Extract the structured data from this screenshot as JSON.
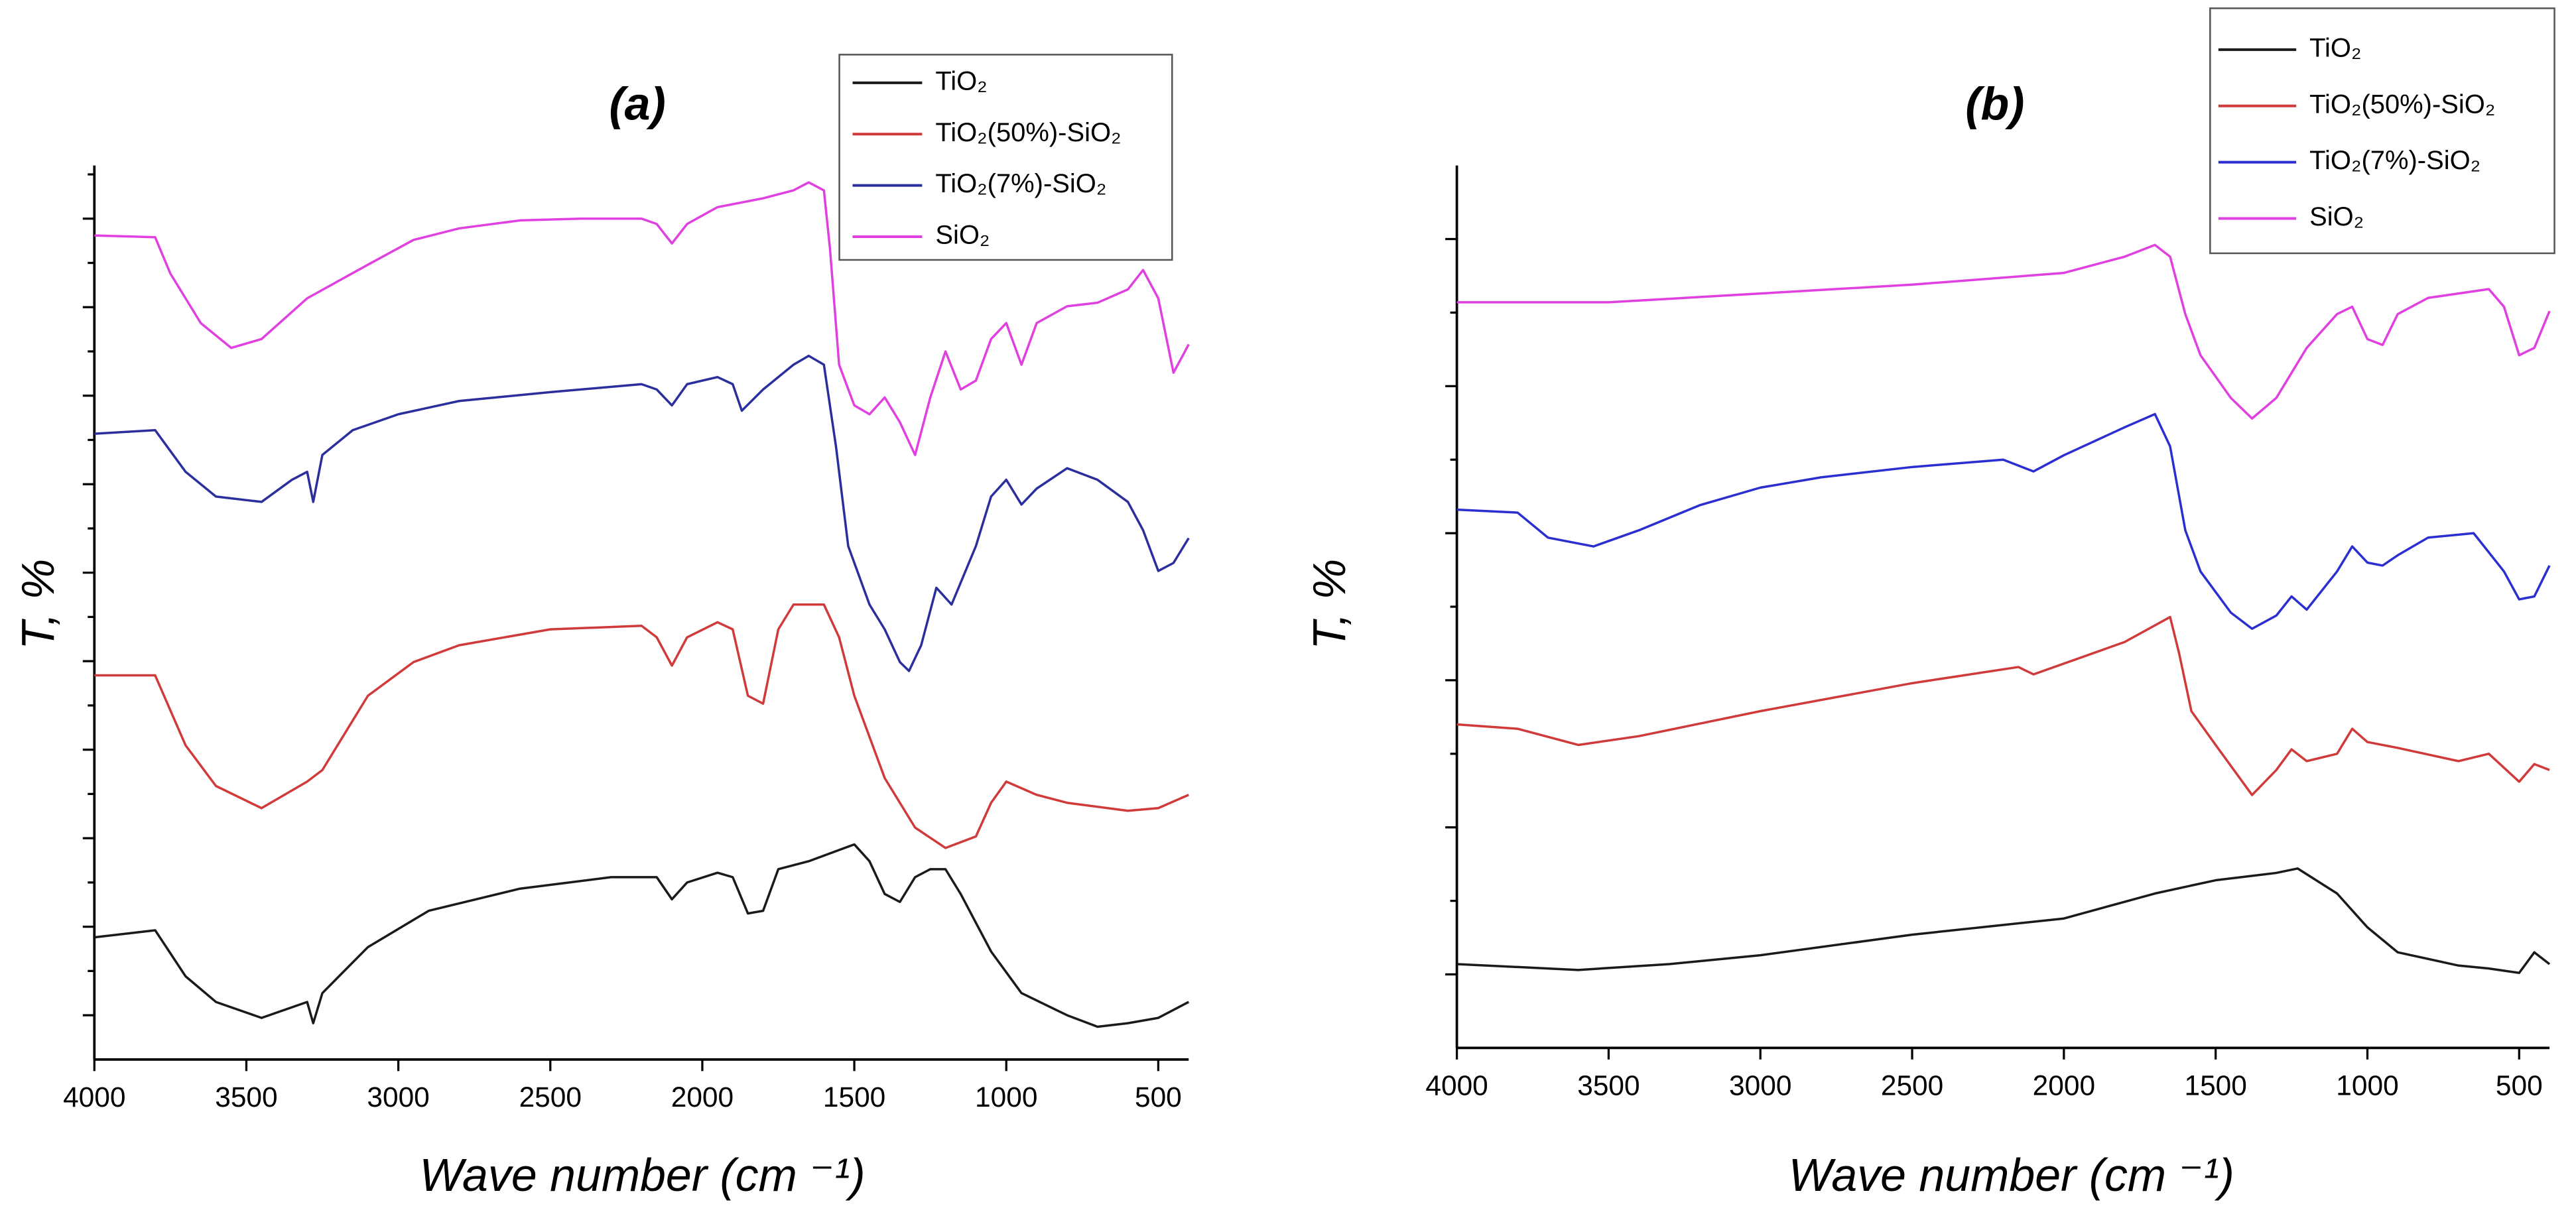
{
  "chart_data": [
    {
      "type": "line",
      "title": "(a)",
      "x_label": "Wave number (cm ⁻¹)",
      "y_label": "T, %",
      "xlim": [
        4000,
        400
      ],
      "xticks": [
        4000,
        3500,
        3000,
        2500,
        2000,
        1500,
        1000,
        500
      ],
      "ylim": [
        0,
        10.1
      ],
      "yticks": [
        0.5,
        1,
        1.5,
        2,
        2.5,
        3,
        3.5,
        4,
        4.5,
        5,
        5.5,
        6,
        6.5,
        7,
        7.5,
        8,
        8.5,
        9,
        9.5,
        10
      ],
      "legend": "upper right",
      "series": [
        {
          "name": "TiO₂",
          "color": "#1a1a1a",
          "x": [
            4000,
            3800,
            3700,
            3600,
            3450,
            3300,
            3280,
            3250,
            3100,
            2900,
            2600,
            2300,
            2150,
            2100,
            2050,
            1950,
            1900,
            1850,
            1800,
            1750,
            1650,
            1500,
            1450,
            1400,
            1350,
            1300,
            1250,
            1200,
            1150,
            1050,
            950,
            800,
            700,
            600,
            500,
            400
          ],
          "values": [
            1.38,
            1.46,
            0.94,
            0.65,
            0.47,
            0.65,
            0.41,
            0.75,
            1.27,
            1.68,
            1.93,
            2.06,
            2.06,
            1.81,
            2.0,
            2.11,
            2.06,
            1.65,
            1.68,
            2.15,
            2.24,
            2.43,
            2.24,
            1.87,
            1.78,
            2.06,
            2.15,
            2.15,
            1.87,
            1.22,
            0.75,
            0.5,
            0.37,
            0.41,
            0.47,
            0.65
          ]
        },
        {
          "name": "TiO₂(50%)-SiO₂",
          "color": "#d03a3a",
          "x": [
            4000,
            3800,
            3700,
            3600,
            3450,
            3300,
            3250,
            3100,
            2950,
            2800,
            2500,
            2200,
            2150,
            2100,
            2050,
            1950,
            1900,
            1850,
            1800,
            1750,
            1700,
            1600,
            1550,
            1500,
            1400,
            1300,
            1200,
            1100,
            1050,
            1000,
            900,
            800,
            600,
            500,
            400
          ],
          "values": [
            4.34,
            4.34,
            3.55,
            3.09,
            2.84,
            3.14,
            3.27,
            4.11,
            4.49,
            4.68,
            4.86,
            4.9,
            4.77,
            4.45,
            4.77,
            4.94,
            4.86,
            4.11,
            4.02,
            4.86,
            5.14,
            5.14,
            4.77,
            4.11,
            3.18,
            2.62,
            2.39,
            2.52,
            2.9,
            3.14,
            2.99,
            2.9,
            2.81,
            2.84,
            2.99
          ]
        },
        {
          "name": "TiO₂(7%)-SiO₂",
          "color": "#2b2f9e",
          "x": [
            4000,
            3800,
            3700,
            3600,
            3450,
            3350,
            3300,
            3280,
            3250,
            3150,
            3000,
            2800,
            2500,
            2200,
            2150,
            2100,
            2050,
            1950,
            1900,
            1870,
            1800,
            1700,
            1650,
            1600,
            1560,
            1520,
            1450,
            1400,
            1350,
            1320,
            1280,
            1230,
            1180,
            1100,
            1050,
            1000,
            950,
            900,
            800,
            700,
            600,
            550,
            500,
            450,
            400
          ],
          "values": [
            7.07,
            7.11,
            6.64,
            6.36,
            6.3,
            6.55,
            6.64,
            6.3,
            6.83,
            7.11,
            7.29,
            7.44,
            7.54,
            7.63,
            7.57,
            7.39,
            7.63,
            7.71,
            7.63,
            7.33,
            7.57,
            7.85,
            7.95,
            7.85,
            6.92,
            5.8,
            5.14,
            4.86,
            4.49,
            4.39,
            4.68,
            5.33,
            5.14,
            5.8,
            6.36,
            6.55,
            6.27,
            6.45,
            6.68,
            6.55,
            6.3,
            5.98,
            5.52,
            5.61,
            5.89
          ]
        },
        {
          "name": "SiO₂",
          "color": "#e040e0",
          "x": [
            4000,
            3800,
            3750,
            3650,
            3550,
            3450,
            3300,
            3100,
            2950,
            2800,
            2600,
            2400,
            2200,
            2150,
            2100,
            2050,
            1950,
            1800,
            1700,
            1650,
            1600,
            1580,
            1550,
            1500,
            1450,
            1400,
            1350,
            1300,
            1250,
            1200,
            1150,
            1100,
            1050,
            1000,
            950,
            900,
            800,
            700,
            600,
            550,
            500,
            450,
            420,
            400
          ],
          "values": [
            9.31,
            9.29,
            8.88,
            8.32,
            8.04,
            8.14,
            8.6,
            8.98,
            9.26,
            9.39,
            9.48,
            9.5,
            9.5,
            9.44,
            9.22,
            9.44,
            9.63,
            9.73,
            9.82,
            9.91,
            9.82,
            9.16,
            7.85,
            7.39,
            7.29,
            7.48,
            7.2,
            6.83,
            7.48,
            8.0,
            7.57,
            7.67,
            8.14,
            8.32,
            7.85,
            8.32,
            8.51,
            8.55,
            8.7,
            8.92,
            8.6,
            7.76,
            7.95,
            8.08
          ]
        }
      ]
    },
    {
      "type": "line",
      "title": "(b)",
      "x_label": "Wave number (cm ⁻¹)",
      "y_label": "T, %",
      "xlim": [
        4000,
        400
      ],
      "xticks": [
        4000,
        3500,
        3000,
        2500,
        2000,
        1500,
        1000,
        500
      ],
      "ylim": [
        0,
        6
      ],
      "yticks": [
        0.5,
        1,
        1.5,
        2,
        2.5,
        3,
        3.5,
        4,
        4.5,
        5,
        5.5
      ],
      "legend": "upper right",
      "series": [
        {
          "name": "TiO₂",
          "color": "#1a1a1a",
          "x": [
            4000,
            3600,
            3300,
            3000,
            2500,
            2000,
            1700,
            1500,
            1300,
            1230,
            1100,
            1000,
            900,
            700,
            600,
            500,
            450,
            400
          ],
          "values": [
            0.57,
            0.53,
            0.57,
            0.63,
            0.77,
            0.88,
            1.05,
            1.14,
            1.19,
            1.22,
            1.05,
            0.82,
            0.65,
            0.56,
            0.54,
            0.51,
            0.65,
            0.57
          ]
        },
        {
          "name": "TiO₂(50%)-SiO₂",
          "color": "#d03a3a",
          "x": [
            4000,
            3800,
            3600,
            3400,
            3000,
            2500,
            2150,
            2100,
            1800,
            1650,
            1620,
            1580,
            1500,
            1380,
            1300,
            1250,
            1200,
            1100,
            1050,
            1000,
            900,
            700,
            600,
            500,
            450,
            400
          ],
          "values": [
            2.2,
            2.17,
            2.06,
            2.12,
            2.29,
            2.48,
            2.59,
            2.54,
            2.76,
            2.93,
            2.68,
            2.29,
            2.06,
            1.72,
            1.89,
            2.03,
            1.95,
            2.0,
            2.17,
            2.08,
            2.04,
            1.95,
            2.0,
            1.81,
            1.93,
            1.89
          ]
        },
        {
          "name": "TiO₂(7%)-SiO₂",
          "color": "#2b2fd0",
          "x": [
            4000,
            3800,
            3700,
            3550,
            3400,
            3200,
            3000,
            2800,
            2500,
            2200,
            2100,
            2000,
            1800,
            1700,
            1650,
            1600,
            1550,
            1450,
            1380,
            1300,
            1250,
            1200,
            1100,
            1050,
            1000,
            950,
            900,
            800,
            650,
            550,
            500,
            450,
            400
          ],
          "values": [
            3.66,
            3.64,
            3.47,
            3.41,
            3.52,
            3.69,
            3.81,
            3.88,
            3.95,
            4.0,
            3.92,
            4.03,
            4.22,
            4.31,
            4.09,
            3.52,
            3.24,
            2.96,
            2.85,
            2.94,
            3.07,
            2.98,
            3.24,
            3.41,
            3.3,
            3.28,
            3.35,
            3.47,
            3.5,
            3.24,
            3.05,
            3.07,
            3.28
          ]
        },
        {
          "name": "SiO₂",
          "color": "#e040e0",
          "x": [
            4000,
            3500,
            3000,
            2500,
            2000,
            1800,
            1700,
            1650,
            1600,
            1550,
            1450,
            1380,
            1300,
            1200,
            1100,
            1050,
            1000,
            950,
            900,
            800,
            600,
            550,
            500,
            450,
            400
          ],
          "values": [
            5.07,
            5.07,
            5.13,
            5.19,
            5.27,
            5.38,
            5.46,
            5.38,
            4.99,
            4.71,
            4.42,
            4.28,
            4.42,
            4.76,
            4.99,
            5.04,
            4.82,
            4.78,
            4.99,
            5.1,
            5.16,
            5.04,
            4.71,
            4.76,
            5.01
          ]
        }
      ]
    }
  ]
}
